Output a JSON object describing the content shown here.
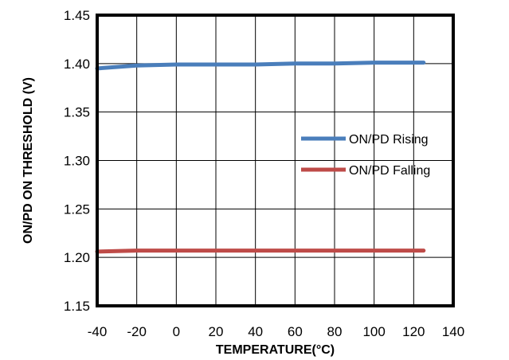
{
  "chart_data": {
    "type": "line",
    "title": "",
    "xlabel": "TEMPERATURE(°C)",
    "ylabel": "ON/PD ON THRESHOLD (V)",
    "xlim": [
      -40,
      140
    ],
    "ylim": [
      1.15,
      1.45
    ],
    "x_ticks": [
      "-40",
      "-20",
      "0",
      "20",
      "40",
      "60",
      "80",
      "100",
      "120",
      "140"
    ],
    "y_ticks": [
      "1.15",
      "1.20",
      "1.25",
      "1.30",
      "1.35",
      "1.40",
      "1.45"
    ],
    "grid": true,
    "legend_position": "right-middle",
    "series": [
      {
        "name": "ON/PD Rising",
        "color": "#4A7EBB",
        "x": [
          -40,
          -20,
          0,
          20,
          40,
          60,
          80,
          100,
          125
        ],
        "values": [
          1.395,
          1.398,
          1.399,
          1.399,
          1.399,
          1.4,
          1.4,
          1.401,
          1.401
        ]
      },
      {
        "name": "ON/PD Falling",
        "color": "#BE4B48",
        "x": [
          -40,
          -20,
          0,
          20,
          40,
          60,
          80,
          100,
          125
        ],
        "values": [
          1.206,
          1.207,
          1.207,
          1.207,
          1.207,
          1.207,
          1.207,
          1.207,
          1.207
        ]
      }
    ]
  }
}
